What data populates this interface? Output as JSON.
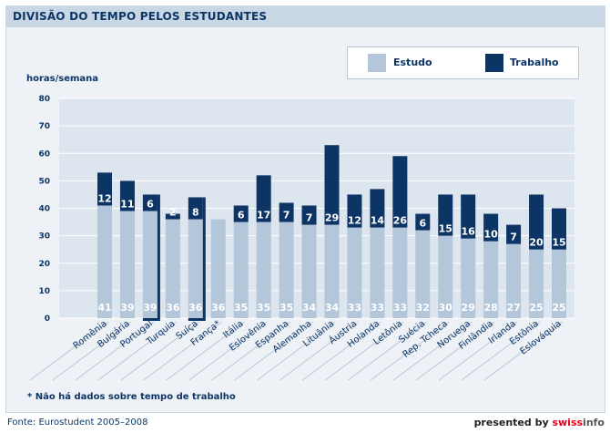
{
  "header": {
    "title": "DIVISÃO DO TEMPO PELOS ESTUDANTES"
  },
  "legend": {
    "study_label": "Estudo",
    "work_label": "Trabalho"
  },
  "colors": {
    "study": "#b4c6da",
    "work": "#0c3566",
    "highlight_text": "#e3001b",
    "text": "#0c3566",
    "grid": "#ffffff",
    "plot_bg": "#dde5ee"
  },
  "footnote": "* Não há dados sobre tempo de trabalho",
  "source": "Fonte: Eurostudent 2005–2008",
  "credit": {
    "prefix": "presented by ",
    "swiss": "swiss",
    "info": "info"
  },
  "chart_data": {
    "type": "bar",
    "stacked": true,
    "title": "DIVISÃO DO TEMPO PELOS ESTUDANTES",
    "ylabel": "horas/semana",
    "xlabel": "",
    "ylim": [
      0,
      80
    ],
    "yticks": [
      0,
      10,
      20,
      30,
      40,
      50,
      60,
      70,
      80
    ],
    "grid": true,
    "legend_position": "top-right",
    "categories": [
      "Romênia",
      "Bulgária",
      "Portugal",
      "Turquia",
      "Suíça",
      "França*",
      "Itália",
      "Eslovênia",
      "Espanha",
      "Alemanha",
      "Lituânia",
      "Áustria",
      "Holanda",
      "Letônia",
      "Suécia",
      "Rep. Tcheca",
      "Noruega",
      "Finlândia",
      "Irlanda",
      "Estônia",
      "Eslováquia"
    ],
    "highlighted": [
      "Portugal",
      "Suíça"
    ],
    "series": [
      {
        "name": "Estudo",
        "values": [
          41,
          39,
          39,
          36,
          36,
          36,
          35,
          35,
          35,
          34,
          34,
          33,
          33,
          33,
          32,
          30,
          29,
          28,
          27,
          25,
          25
        ]
      },
      {
        "name": "Trabalho",
        "values": [
          12,
          11,
          6,
          2,
          8,
          0,
          6,
          17,
          7,
          7,
          29,
          12,
          14,
          26,
          6,
          15,
          16,
          10,
          7,
          20,
          15
        ]
      }
    ],
    "work_labels_shown": [
      true,
      true,
      true,
      true,
      true,
      false,
      true,
      true,
      true,
      true,
      true,
      true,
      true,
      true,
      true,
      true,
      true,
      true,
      true,
      true,
      true
    ]
  }
}
